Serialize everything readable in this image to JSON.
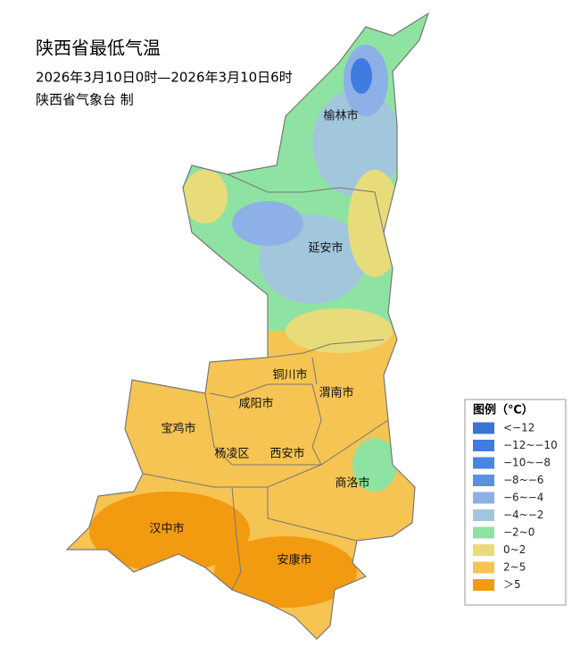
{
  "header": {
    "title": "陕西省最低气温",
    "subtitle": "2026年3月10日0时—2026年3月10日6时",
    "publisher": "陕西省气象台 制"
  },
  "cities": [
    "榆林市",
    "延安市",
    "铜川市",
    "渭南市",
    "咸阳市",
    "宝鸡市",
    "杨凌区",
    "西安市",
    "商洛市",
    "汉中市",
    "安康市"
  ],
  "legend": {
    "title": "图例（℃）",
    "entries": [
      {
        "label": "<−12",
        "color": "#3a74d6"
      },
      {
        "label": "−12~−10",
        "color": "#3f7be0"
      },
      {
        "label": "−10~−8",
        "color": "#4685e2"
      },
      {
        "label": "−8~−6",
        "color": "#5c90e0"
      },
      {
        "label": "−6~−4",
        "color": "#8db0e6"
      },
      {
        "label": "−4~−2",
        "color": "#a2c6dc"
      },
      {
        "label": "−2~0",
        "color": "#8fe3a2"
      },
      {
        "label": "0~2",
        "color": "#e8dc7a"
      },
      {
        "label": "2~5",
        "color": "#f6c452"
      },
      {
        "label": "＞5",
        "color": "#f29a10"
      }
    ]
  }
}
